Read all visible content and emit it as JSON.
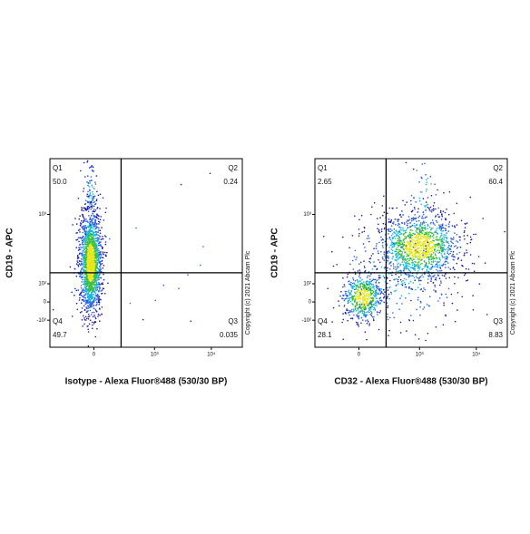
{
  "chart_data": [
    {
      "type": "quadrant",
      "x_label": "Isotype - Alexa Fluor®488 (530/30 BP)",
      "y_label": "CD19 - APC",
      "copyright": "Copyright (c) 2021 Abcam Plc",
      "categories": [
        "Q1",
        "Q2",
        "Q3",
        "Q4"
      ],
      "values": [
        50.0,
        0.24,
        0.035,
        49.7
      ],
      "value_labels": [
        "50.0",
        "0.24",
        "0.035",
        "49.7"
      ],
      "gate": {
        "x": 232,
        "y": 170
      },
      "xlim": [
        -500,
        35000
      ],
      "xticks": [
        0,
        {
          "value": 1000,
          "label": "10³"
        },
        {
          "value": 10000,
          "label": "10⁴"
        }
      ],
      "ylim": [
        -300,
        4400
      ],
      "yticks": [
        {
          "value": -100,
          "label": "-10²"
        },
        0,
        {
          "value": 100,
          "label": "10²"
        },
        {
          "value": 1000,
          "label": "10³"
        }
      ]
    },
    {
      "type": "quadrant",
      "x_label": "CD32 - Alexa Fluor®488 (530/30 BP)",
      "y_label": "CD19 - APC",
      "copyright": "Copyright (c) 2021 Abcam Plc",
      "categories": [
        "Q1",
        "Q2",
        "Q3",
        "Q4"
      ],
      "values": [
        2.65,
        60.4,
        8.83,
        28.1
      ],
      "gate": {
        "x": 232,
        "y": 170
      },
      "xlim": [
        -500,
        35000
      ],
      "xticks": [
        0,
        {
          "value": 1000,
          "label": "10³"
        },
        {
          "value": 10000,
          "label": "10⁴"
        }
      ],
      "ylim": [
        -300,
        4400
      ],
      "yticks": [
        {
          "value": -100,
          "label": "-10²"
        },
        0,
        {
          "value": 100,
          "label": "10²"
        },
        {
          "value": 1000,
          "label": "10³"
        }
      ]
    }
  ]
}
